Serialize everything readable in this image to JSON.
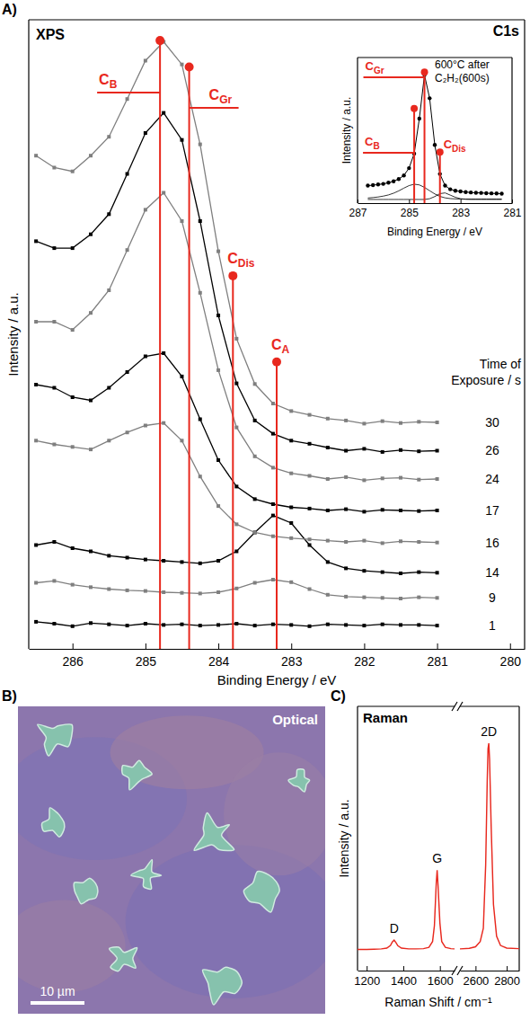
{
  "chart_data": [
    {
      "type": "line",
      "panel": "A)",
      "title": "XPS",
      "subtitle": "C1s",
      "x_label": "Binding Energy / eV",
      "y_label": "Intensity / a.u.",
      "xlim": [
        286.6,
        279.8
      ],
      "xticks": [
        286,
        285,
        284,
        283,
        282,
        281,
        280
      ],
      "ylim": [
        0,
        100
      ],
      "tick_labels": "x",
      "marker": "square",
      "legend": "right",
      "legend_title": "Time of Exposure / s",
      "x": [
        286.5,
        286.25,
        286,
        285.75,
        285.5,
        285.25,
        285,
        284.75,
        284.5,
        284.25,
        284,
        283.75,
        283.5,
        283.25,
        283,
        282.75,
        282.5,
        282.25,
        282,
        281.75,
        281.5,
        281.25,
        281
      ],
      "series": [
        {
          "name": "1",
          "color": "#000000",
          "values": [
            4.3,
            4.0,
            3.6,
            4.1,
            3.9,
            3.7,
            4.0,
            3.8,
            3.9,
            3.7,
            3.8,
            4.0,
            3.7,
            3.9,
            3.8,
            3.6,
            3.9,
            3.8,
            3.7,
            3.9,
            3.8,
            3.8,
            3.7
          ]
        },
        {
          "name": "9",
          "color": "#7f7f7f",
          "values": [
            10.5,
            10.8,
            10.2,
            9.8,
            9.5,
            9.3,
            9.2,
            9.0,
            8.9,
            8.8,
            9.0,
            9.6,
            10.5,
            11.0,
            10.6,
            9.5,
            8.6,
            8.3,
            8.2,
            8.1,
            8.0,
            8.2,
            8.1
          ]
        },
        {
          "name": "14",
          "color": "#000000",
          "values": [
            16.5,
            17.0,
            16.0,
            15.5,
            14.8,
            14.5,
            14.2,
            14.0,
            13.8,
            13.6,
            14.0,
            15.5,
            18.5,
            21.2,
            20.0,
            16.5,
            13.8,
            12.8,
            12.4,
            12.2,
            12.0,
            12.2,
            12.1
          ]
        },
        {
          "name": "16",
          "color": "#7f7f7f",
          "values": [
            33.1,
            32.5,
            32.1,
            31.7,
            33.1,
            34.4,
            35.5,
            35.9,
            33.1,
            27.4,
            22.7,
            19.8,
            18.5,
            17.9,
            17.6,
            17.4,
            17.2,
            17.0,
            17.2,
            16.8,
            17.1,
            17.0,
            16.9
          ]
        },
        {
          "name": "17",
          "color": "#000000",
          "values": [
            42.0,
            41.5,
            40.0,
            39.5,
            41.5,
            44.0,
            46.5,
            47.0,
            43.3,
            36.5,
            30.0,
            25.8,
            23.8,
            23.0,
            22.5,
            22.3,
            22.0,
            22.2,
            21.8,
            22.1,
            22.0,
            21.9,
            22.0
          ]
        },
        {
          "name": "24",
          "color": "#7f7f7f",
          "values": [
            52.0,
            52.0,
            50.7,
            53.4,
            57.0,
            63.4,
            69.8,
            72.5,
            68.0,
            56.6,
            44.3,
            35.2,
            30.6,
            28.8,
            27.9,
            27.5,
            27.0,
            27.3,
            26.8,
            27.1,
            27.2,
            26.9,
            27.0
          ]
        },
        {
          "name": "26",
          "color": "#000000",
          "values": [
            64.8,
            63.7,
            63.7,
            65.9,
            69.1,
            75.5,
            82.0,
            85.2,
            80.9,
            68.0,
            53.0,
            42.2,
            36.3,
            34.2,
            33.1,
            32.6,
            32.0,
            31.5,
            31.8,
            31.3,
            31.6,
            31.4,
            31.5
          ]
        },
        {
          "name": "30",
          "color": "#7f7f7f",
          "values": [
            78.4,
            76.5,
            75.9,
            78.4,
            81.4,
            87.4,
            93.5,
            96.5,
            92.9,
            80.2,
            63.2,
            49.3,
            42.1,
            39.0,
            37.8,
            37.2,
            36.6,
            36.3,
            35.8,
            36.2,
            35.9,
            36.1,
            36.0
          ]
        }
      ],
      "annotations": [
        {
          "label": "C",
          "subscript": "B",
          "x": 284.8,
          "y": 96.7,
          "color": "#e8281e"
        },
        {
          "label": "C",
          "subscript": "Gr",
          "x": 284.4,
          "y": 92.5,
          "color": "#e8281e"
        },
        {
          "label": "C",
          "subscript": "Dis",
          "x": 283.8,
          "y": 59.3,
          "color": "#e8281e"
        },
        {
          "label": "C",
          "subscript": "A",
          "x": 283.2,
          "y": 45.6,
          "color": "#e8281e"
        }
      ]
    },
    {
      "type": "line",
      "title": "600°C after C₂H₂(600s)",
      "x_label": "Binding Energy / eV",
      "y_label": "Intensity / a.u.",
      "xlim": [
        287,
        281
      ],
      "xticks": [
        287,
        285,
        283,
        281
      ],
      "ylim": [
        0,
        100
      ],
      "tick_labels": "x",
      "x": [
        286.6,
        286.4,
        286.2,
        286.0,
        285.8,
        285.6,
        285.4,
        285.2,
        285.0,
        284.8,
        284.6,
        284.4,
        284.2,
        284.0,
        283.8,
        283.6,
        283.4,
        283.2,
        283.0,
        282.8,
        282.6,
        282.4,
        282.2,
        282.0,
        281.8,
        281.6,
        281.4
      ],
      "series": [
        {
          "color": "#000000",
          "marker": "circle",
          "values": [
            12,
            12.3,
            12.8,
            13.2,
            14,
            15,
            16.5,
            19,
            24,
            34,
            58,
            88,
            72,
            40,
            20,
            12,
            9.5,
            8.5,
            8,
            7.6,
            7.3,
            7.1,
            7,
            6.8,
            6.7,
            6.6,
            6.5
          ]
        },
        {
          "color": "#000000",
          "values": [
            3.5,
            3.8,
            4.2,
            4.8,
            5.6,
            6.8,
            8.4,
            10.3,
            12,
            13,
            12.5,
            10.8,
            8.5,
            6.3,
            4.6,
            3.6,
            3.1,
            2.9,
            2.8,
            2.8,
            2.8,
            2.8,
            2.8,
            2.8,
            2.8,
            2.8,
            2.8
          ]
        },
        {
          "color": "#000000",
          "values": [
            2.5,
            2.5,
            2.5,
            2.5,
            2.5,
            2.5,
            2.5,
            2.5,
            2.5,
            2.5,
            2.5,
            2.5,
            3,
            4.5,
            6.5,
            7,
            5.5,
            4,
            3,
            2.6,
            2.5,
            2.5,
            2.5,
            2.5,
            2.5,
            2.5,
            2.5
          ]
        }
      ],
      "annotations": [
        {
          "label": "C",
          "subscript": "Gr",
          "x": 284.4,
          "y": 90,
          "color": "#e8281e"
        },
        {
          "label": "C",
          "subscript": "B",
          "x": 284.8,
          "y": 65,
          "color": "#e8281e"
        },
        {
          "label": "C",
          "subscript": "Dis",
          "x": 283.8,
          "y": 35,
          "color": "#e8281e"
        }
      ]
    },
    {
      "type": "image",
      "panel": "B)",
      "title": "Optical",
      "scale_bar": "10 µm"
    },
    {
      "type": "line",
      "panel": "C)",
      "title": "Raman",
      "x_label": "Raman Shift / cm⁻¹",
      "y_label": "Intensity / a.u.",
      "ylim": [
        0,
        100
      ],
      "tick_labels": "x",
      "x_segments": [
        {
          "xlim": [
            1150,
            1680
          ],
          "xticks": [
            1200,
            1400,
            1600
          ]
        },
        {
          "xlim": [
            2500,
            2880
          ],
          "xticks": [
            2600,
            2800
          ]
        }
      ],
      "series": [
        {
          "color": "#e8281e",
          "x": [
            1150,
            1200,
            1240,
            1280,
            1310,
            1330,
            1340,
            1350,
            1360,
            1370,
            1390,
            1430,
            1470,
            1510,
            1540,
            1560,
            1570,
            1580,
            1585,
            1590,
            1600,
            1610,
            1630,
            1660,
            1680
          ],
          "values": [
            8.0,
            8.0,
            8.1,
            8.2,
            8.5,
            9.5,
            10.8,
            11.5,
            10.6,
            9.4,
            8.5,
            8.2,
            8.2,
            8.3,
            8.8,
            11,
            17,
            33,
            38,
            32,
            18,
            11,
            8.8,
            8.3,
            8.2
          ]
        },
        {
          "color": "#e8281e",
          "x": [
            2500,
            2560,
            2600,
            2630,
            2650,
            2665,
            2675,
            2680,
            2685,
            2690,
            2700,
            2715,
            2735,
            2760,
            2800,
            2880
          ],
          "values": [
            8.2,
            8.4,
            9,
            11,
            16,
            40,
            72,
            84,
            86,
            80,
            55,
            25,
            13,
            9.5,
            8.5,
            8.3
          ]
        }
      ],
      "peak_labels": [
        {
          "label": "D",
          "x": 1350,
          "y": 11.5
        },
        {
          "label": "G",
          "x": 1585,
          "y": 38
        },
        {
          "label": "2D",
          "x": 2685,
          "y": 86
        }
      ]
    }
  ]
}
